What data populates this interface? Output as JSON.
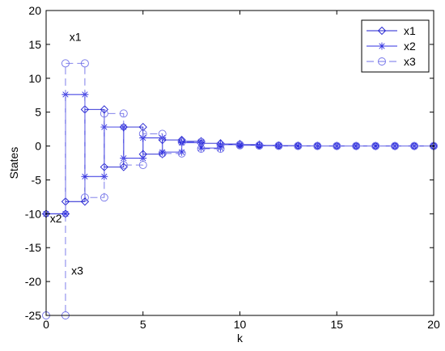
{
  "chart_data": {
    "type": "line",
    "title": "",
    "xlabel": "k",
    "ylabel": "States",
    "xlim": [
      0,
      20
    ],
    "ylim": [
      -25,
      20
    ],
    "xticks": [
      "0",
      "5",
      "10",
      "15",
      "20"
    ],
    "yticks": [
      "-25",
      "-20",
      "-15",
      "-10",
      "-5",
      "0",
      "5",
      "10",
      "15",
      "20"
    ],
    "grid": false,
    "legend": "top-right",
    "step": true,
    "x": [
      0,
      1,
      2,
      3,
      4,
      5,
      6,
      7,
      8,
      9,
      10,
      11,
      12,
      13,
      14,
      15,
      16,
      17,
      18,
      19,
      20
    ],
    "series": [
      {
        "name": "x1",
        "marker": "diamond",
        "linestyle": "solid",
        "color": "#1f1fd0",
        "values": [
          -10,
          -8.2,
          5.4,
          -3.1,
          2.8,
          -1.2,
          0.9,
          0.7,
          0.4,
          0.3,
          0.2,
          0.1,
          0.05,
          0.03,
          0.02,
          0.01,
          0,
          0,
          0,
          0,
          0
        ]
      },
      {
        "name": "x2",
        "marker": "star",
        "linestyle": "solid",
        "color": "#3030e0",
        "values": [
          -10,
          7.6,
          -4.5,
          2.8,
          -1.8,
          1.2,
          -0.9,
          0.5,
          -0.3,
          0.2,
          0.1,
          0.05,
          0.02,
          0.01,
          0,
          0,
          0,
          0,
          0,
          0,
          0
        ]
      },
      {
        "name": "x3",
        "marker": "circle",
        "linestyle": "dashed",
        "color": "#7070e8",
        "values": [
          -25,
          12.2,
          -7.6,
          4.8,
          -2.8,
          1.8,
          -1.1,
          0.6,
          -0.4,
          0.2,
          0.1,
          0.05,
          0.02,
          0.01,
          0,
          0,
          0,
          0,
          0,
          0,
          0
        ]
      }
    ],
    "annotations": [
      {
        "text": "x1",
        "x": 1.2,
        "y": 15.5
      },
      {
        "text": "x2",
        "x": 0.2,
        "y": -11.3
      },
      {
        "text": "x3",
        "x": 1.3,
        "y": -19
      }
    ]
  }
}
